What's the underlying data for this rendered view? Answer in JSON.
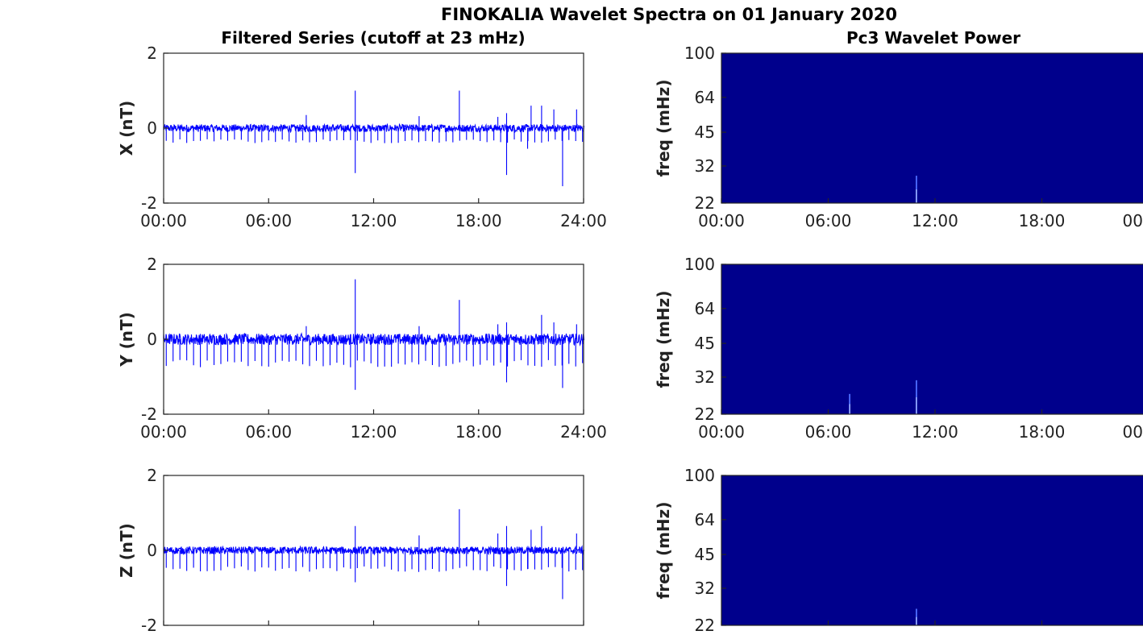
{
  "figure": {
    "title": "FINOKALIA Wavelet Spectra on 01 January 2020",
    "left_title": "Filtered Series (cutoff at 23 mHz)",
    "right_title": "Pc3 Wavelet Power"
  },
  "colors": {
    "trace": "#0000ff",
    "spectrum_background": "#00008c",
    "spectrum_highlight": "#4d6dff"
  },
  "chart_data": [
    {
      "type": "line",
      "panel": "X",
      "ylabel": "X (nT)",
      "ylim": [
        -2,
        2
      ],
      "yticks": [
        "2",
        "0",
        "-2"
      ],
      "xlim_hours": [
        0,
        24
      ],
      "xticks": [
        "00:00",
        "06:00",
        "12:00",
        "18:00",
        "24:00"
      ],
      "noise_band": [
        -0.1,
        0.1
      ],
      "periodic_dip": -0.35,
      "spikes": [
        {
          "t": 8.15,
          "y": 0.35
        },
        {
          "t": 10.95,
          "y": 1.0
        },
        {
          "t": 10.95,
          "y": -1.2
        },
        {
          "t": 14.6,
          "y": 0.32
        },
        {
          "t": 16.9,
          "y": 1.0
        },
        {
          "t": 19.1,
          "y": 0.3
        },
        {
          "t": 19.6,
          "y": 0.4
        },
        {
          "t": 19.6,
          "y": -1.25
        },
        {
          "t": 20.8,
          "y": -0.55
        },
        {
          "t": 21.0,
          "y": 0.6
        },
        {
          "t": 21.6,
          "y": 0.6
        },
        {
          "t": 22.3,
          "y": 0.5
        },
        {
          "t": 22.8,
          "y": -1.55
        },
        {
          "t": 23.6,
          "y": 0.5
        }
      ]
    },
    {
      "type": "line",
      "panel": "Y",
      "ylabel": "Y (nT)",
      "ylim": [
        -2,
        2
      ],
      "yticks": [
        "2",
        "0",
        "-2"
      ],
      "xlim_hours": [
        0,
        24
      ],
      "xticks": [
        "00:00",
        "06:00",
        "12:00",
        "18:00",
        "24:00"
      ],
      "noise_band": [
        -0.15,
        0.15
      ],
      "periodic_dip": -0.65,
      "spikes": [
        {
          "t": 8.15,
          "y": 0.35
        },
        {
          "t": 10.95,
          "y": 1.6
        },
        {
          "t": 10.95,
          "y": -1.35
        },
        {
          "t": 14.6,
          "y": 0.35
        },
        {
          "t": 16.9,
          "y": 1.05
        },
        {
          "t": 19.1,
          "y": 0.4
        },
        {
          "t": 19.6,
          "y": 0.45
        },
        {
          "t": 19.6,
          "y": -1.15
        },
        {
          "t": 21.6,
          "y": 0.65
        },
        {
          "t": 22.3,
          "y": 0.45
        },
        {
          "t": 22.8,
          "y": -1.3
        },
        {
          "t": 23.6,
          "y": 0.4
        }
      ]
    },
    {
      "type": "line",
      "panel": "Z",
      "ylabel": "Z (nT)",
      "ylim": [
        -2,
        2
      ],
      "yticks": [
        "2",
        "0",
        "-2"
      ],
      "xlim_hours": [
        0,
        24
      ],
      "xticks": [],
      "noise_band": [
        -0.1,
        0.1
      ],
      "periodic_dip": -0.5,
      "spikes": [
        {
          "t": 10.95,
          "y": 0.65
        },
        {
          "t": 10.95,
          "y": -0.85
        },
        {
          "t": 14.6,
          "y": 0.4
        },
        {
          "t": 16.9,
          "y": 1.1
        },
        {
          "t": 19.1,
          "y": 0.45
        },
        {
          "t": 19.6,
          "y": 0.65
        },
        {
          "t": 19.6,
          "y": -0.95
        },
        {
          "t": 20.8,
          "y": -0.5
        },
        {
          "t": 21.0,
          "y": 0.55
        },
        {
          "t": 21.6,
          "y": 0.65
        },
        {
          "t": 22.8,
          "y": -1.3
        },
        {
          "t": 23.6,
          "y": 0.45
        }
      ]
    },
    {
      "type": "heatmap",
      "panel": "X",
      "ylabel": "freq (mHz)",
      "ylim": [
        22,
        100
      ],
      "yscale": "log",
      "yticks": [
        "100",
        "64",
        "45",
        "32",
        "22"
      ],
      "xlim_hours": [
        0,
        24
      ],
      "xticks": [
        "00:00",
        "06:00",
        "12:00",
        "18:00",
        "00"
      ],
      "highlights": [
        {
          "t": 10.95,
          "fmax": 29
        }
      ]
    },
    {
      "type": "heatmap",
      "panel": "Y",
      "ylabel": "freq (mHz)",
      "ylim": [
        22,
        100
      ],
      "yscale": "log",
      "yticks": [
        "100",
        "64",
        "45",
        "32",
        "22"
      ],
      "xlim_hours": [
        0,
        24
      ],
      "xticks": [
        "00:00",
        "06:00",
        "12:00",
        "18:00",
        "00"
      ],
      "highlights": [
        {
          "t": 7.2,
          "fmax": 27
        },
        {
          "t": 10.95,
          "fmax": 31
        }
      ]
    },
    {
      "type": "heatmap",
      "panel": "Z",
      "ylabel": "freq (mHz)",
      "ylim": [
        22,
        100
      ],
      "yscale": "log",
      "yticks": [
        "100",
        "64",
        "45",
        "32",
        "22"
      ],
      "xlim_hours": [
        0,
        24
      ],
      "xticks": [],
      "highlights": [
        {
          "t": 10.95,
          "fmax": 26
        }
      ]
    }
  ]
}
